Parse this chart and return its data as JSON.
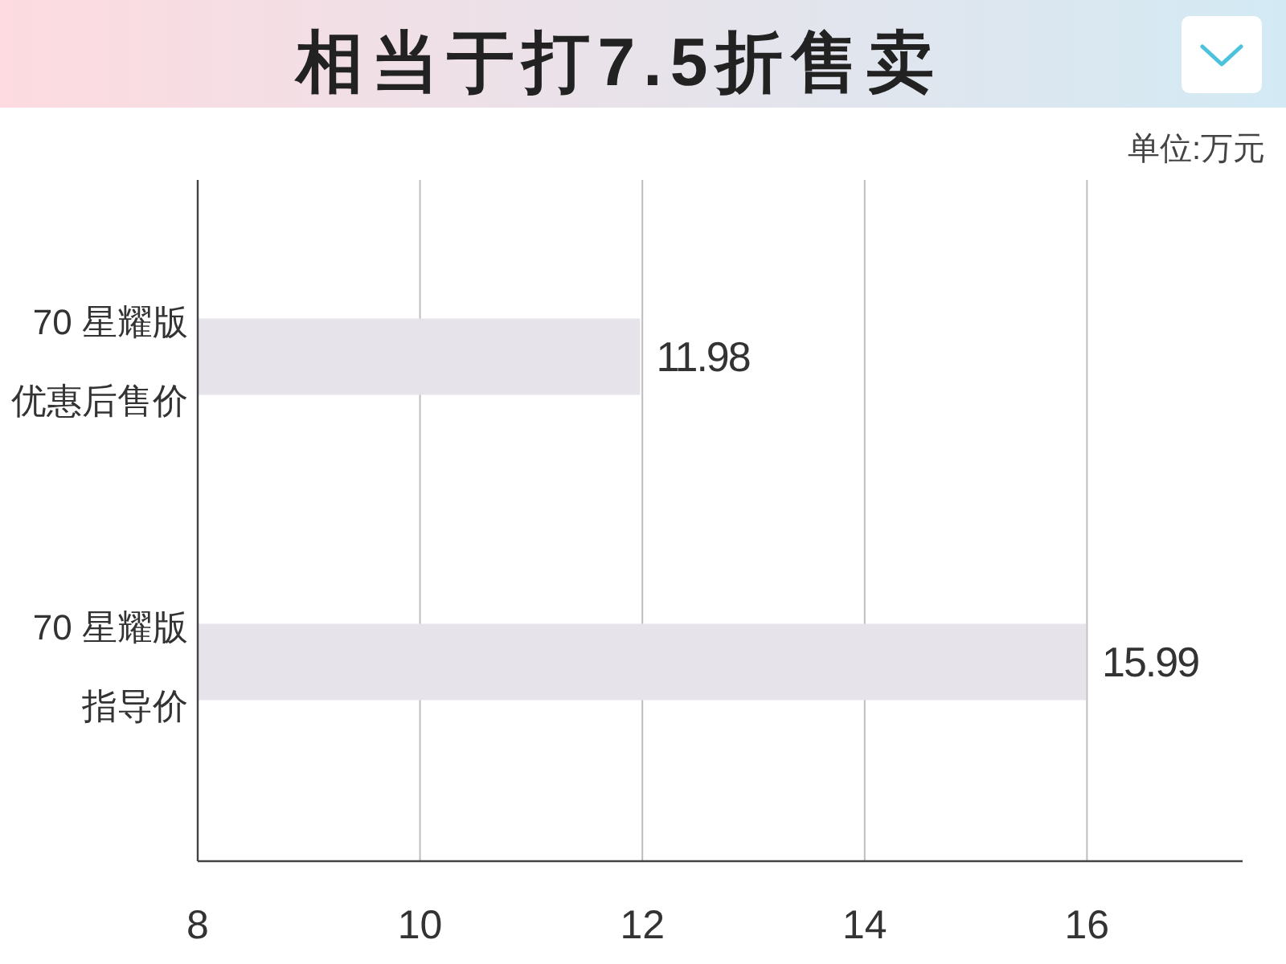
{
  "chart_data": {
    "type": "bar",
    "orientation": "horizontal",
    "title": "相当于打7.5折售卖",
    "annotations": [
      "单位:万元"
    ],
    "categories": [
      "70 星耀版优惠后售价",
      "70 星耀版指导价"
    ],
    "values": [
      11.98,
      15.99
    ],
    "color": "#e7e3ea",
    "xlim": [
      8,
      17.4
    ],
    "xticks": [
      8,
      10,
      12,
      14,
      16
    ],
    "grid": "x",
    "data_labels": true
  }
}
